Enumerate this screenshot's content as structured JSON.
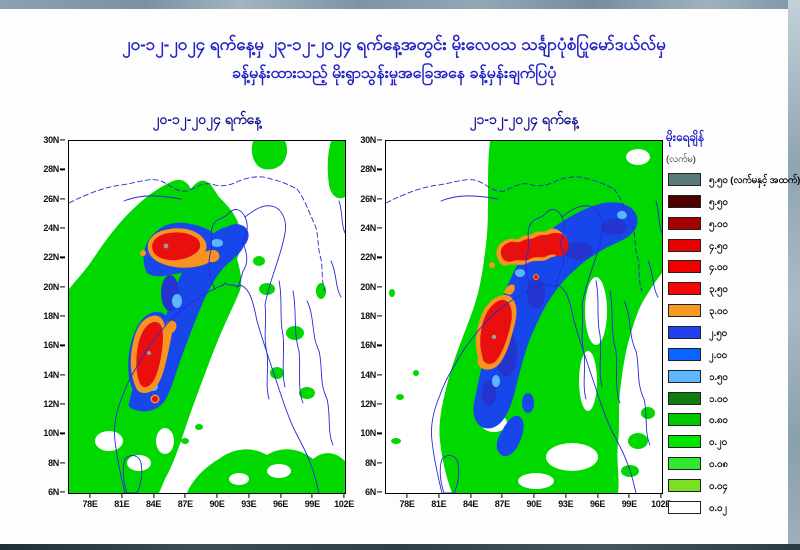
{
  "header": {
    "title_line1": "၂၀-၁၂-၂၀၂၄ ရက်နေ့မှ ၂၃-၁၂-၂၀၂၄ ရက်နေ့အတွင်း မိုးလေဝသ သင်္ချာပုံစံပြုမော်ဒယ်လ်မှ",
    "title_line2": "ခန့်မှန်းထားသည့် မိုးရွာသွန်းမှုအခြေအနေ ခန့်မှန်းချက်ပြပုံ"
  },
  "panels": [
    {
      "title": "၂၀-၁၂-၂၀၂၄ ရက်နေ့"
    },
    {
      "title": "၂၁-၁၂-၂၀၂၄ ရက်နေ့"
    }
  ],
  "axes": {
    "x_ticks": [
      "78E",
      "81E",
      "84E",
      "87E",
      "90E",
      "93E",
      "96E",
      "99E",
      "102E"
    ],
    "y_ticks": [
      "30N",
      "28N",
      "26N",
      "24N",
      "22N",
      "20N",
      "18N",
      "16N",
      "14N",
      "12N",
      "10N",
      "8N",
      "6N"
    ],
    "lon_range": [
      76,
      102
    ],
    "lat_range": [
      6,
      30
    ]
  },
  "legend": {
    "title": "မိုးရေချိန်",
    "unit": "(လက်မ)",
    "items": [
      {
        "label": "၅.၅၀ (လက်မနှင့် အထက်)",
        "value_inches": 5.5,
        "color": "#5c7a78"
      },
      {
        "label": "၅.၅၀",
        "value_inches": 5.5,
        "color": "#4f0000"
      },
      {
        "label": "၅.၀၀",
        "value_inches": 5.0,
        "color": "#a40000"
      },
      {
        "label": "၄.၅၀",
        "value_inches": 4.5,
        "color": "#e60000"
      },
      {
        "label": "၄.၀၀",
        "value_inches": 4.0,
        "color": "#ee0000"
      },
      {
        "label": "၃.၅၀",
        "value_inches": 3.5,
        "color": "#f90505"
      },
      {
        "label": "၃.၀၀",
        "value_inches": 3.0,
        "color": "#f59a23"
      },
      {
        "label": "၂.၅၀",
        "value_inches": 2.5,
        "color": "#2040f0"
      },
      {
        "label": "၂.၀၀",
        "value_inches": 2.0,
        "color": "#0a64ff"
      },
      {
        "label": "၁.၅၀",
        "value_inches": 1.5,
        "color": "#5fb8ff"
      },
      {
        "label": "၁.၀၀",
        "value_inches": 1.0,
        "color": "#107c10"
      },
      {
        "label": "၀.၈၀",
        "value_inches": 0.8,
        "color": "#00c800"
      },
      {
        "label": "၀.၂၀",
        "value_inches": 0.2,
        "color": "#00e400"
      },
      {
        "label": "၀.၀၈",
        "value_inches": 0.08,
        "color": "#30e830"
      },
      {
        "label": "၀.၀၄",
        "value_inches": 0.04,
        "color": "#7ae024"
      },
      {
        "label": "၀.၀၂",
        "value_inches": 0.02,
        "color": "#ffffff"
      }
    ]
  },
  "map_colors": {
    "rain_green": "#00d800",
    "rain_blue": "#1747ea",
    "rain_dark_blue": "#2334cf",
    "rain_light_blue": "#5cb6ff",
    "rain_orange": "#f79421",
    "rain_red": "#ea0f0f",
    "boundary_blue": "#2828d8",
    "accent_title_blue": "#2121c6"
  }
}
